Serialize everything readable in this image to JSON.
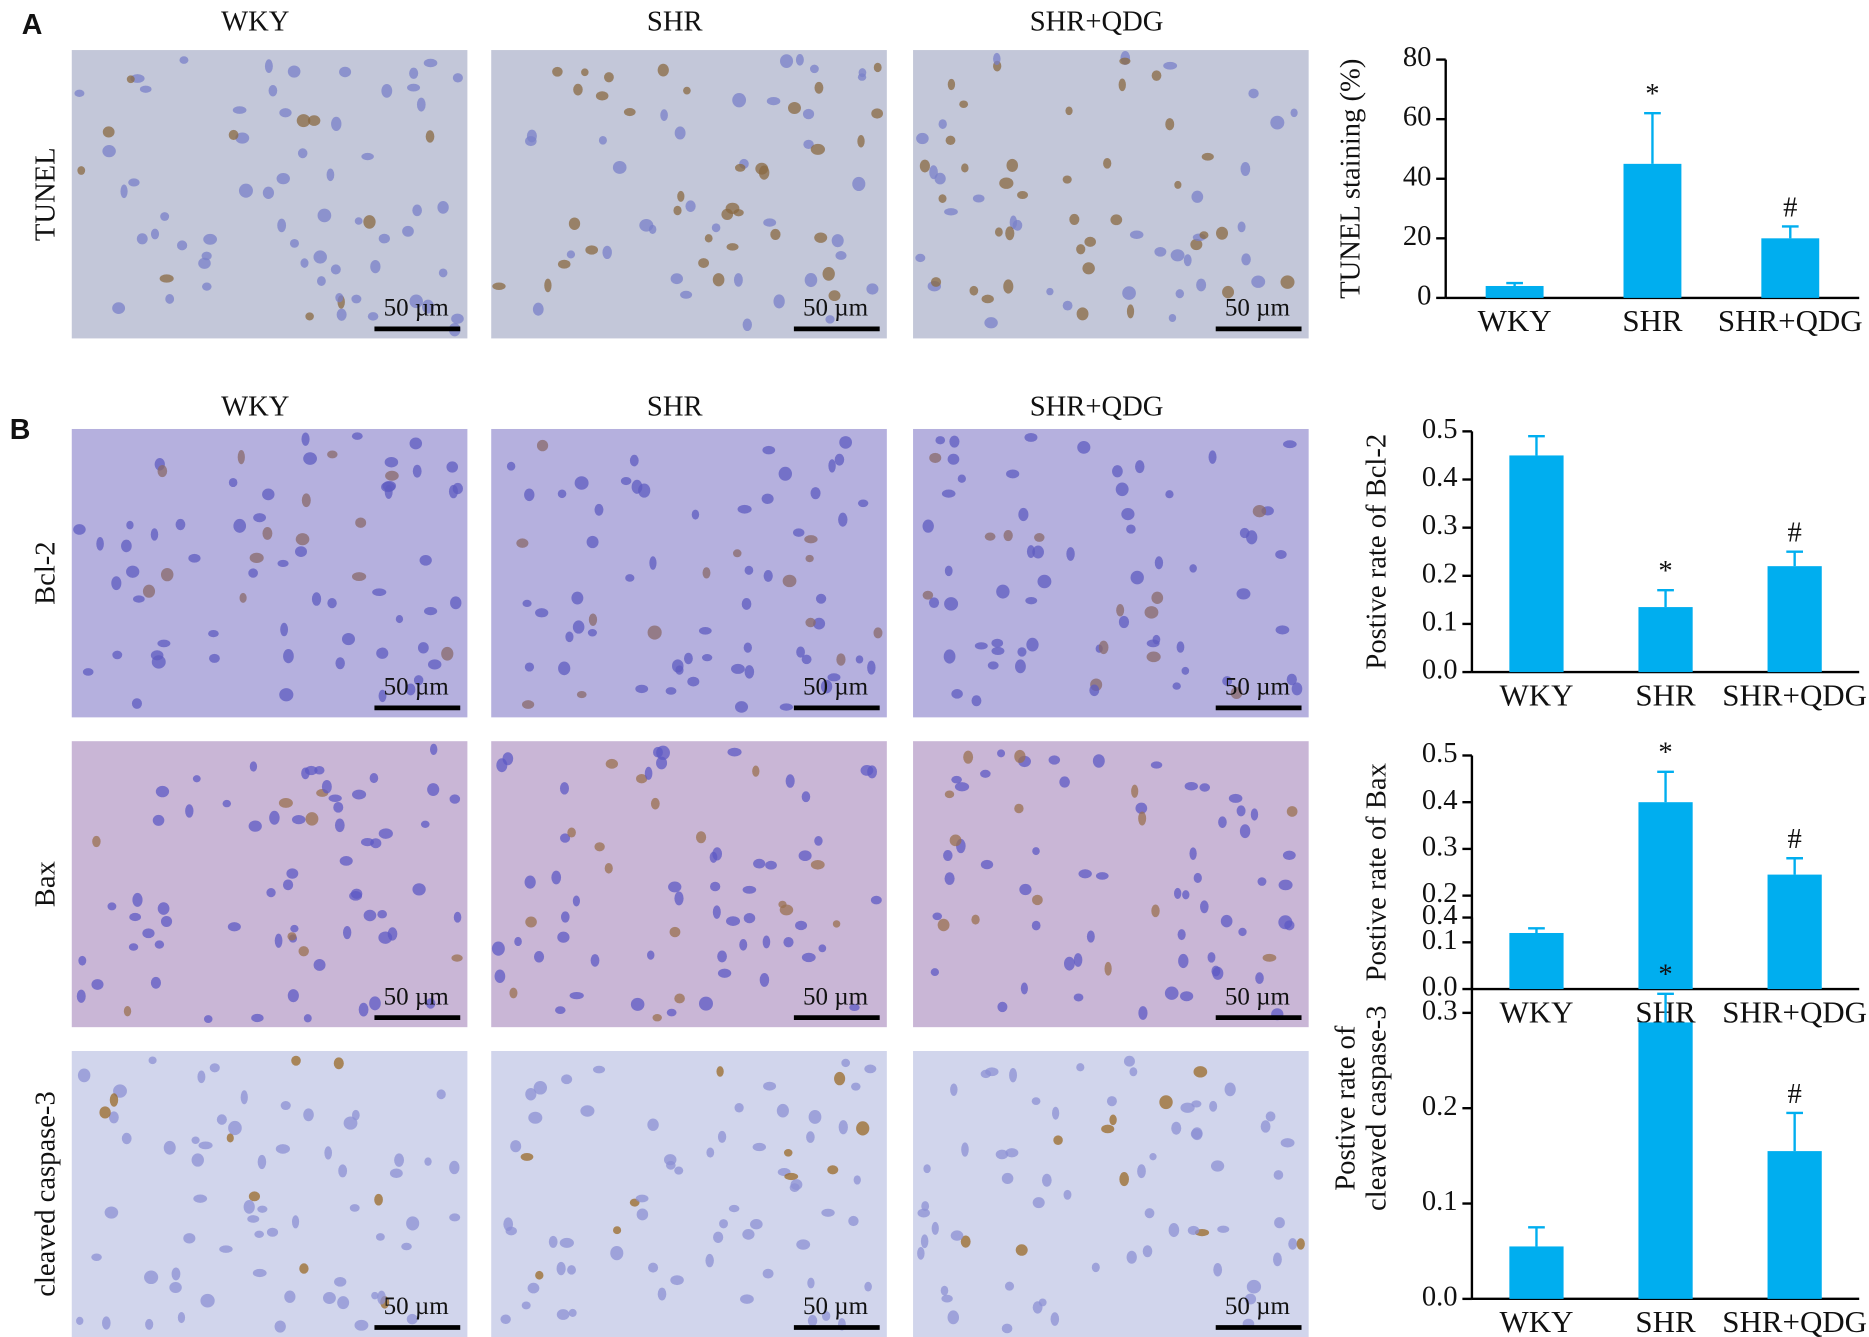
{
  "figure": {
    "panels": [
      "A",
      "B"
    ],
    "columns": [
      "WKY",
      "SHR",
      "SHR+QDG"
    ],
    "rows": [
      "TUNEL",
      "Bcl-2",
      "Bax",
      "cleaved caspase-3"
    ],
    "scale_bar": "50 µm"
  },
  "chart_data": [
    {
      "type": "bar",
      "ylabel": [
        "TUNEL staining (%)"
      ],
      "categories": [
        "WKY",
        "SHR",
        "SHR+QDG"
      ],
      "values": [
        4,
        45,
        20
      ],
      "errors": [
        1,
        17,
        4
      ],
      "color": "#00aeef",
      "ylim": [
        0,
        80
      ],
      "yticks": [
        0,
        20,
        40,
        60,
        80
      ],
      "annotations": [
        {
          "x": "SHR",
          "text": "*"
        },
        {
          "x": "SHR+QDG",
          "text": "#"
        }
      ]
    },
    {
      "type": "bar",
      "ylabel": [
        "Postive rate of Bcl-2"
      ],
      "categories": [
        "WKY",
        "SHR",
        "SHR+QDG"
      ],
      "values": [
        0.45,
        0.135,
        0.22
      ],
      "errors": [
        0.04,
        0.035,
        0.03
      ],
      "color": "#00aeef",
      "ylim": [
        0,
        0.5
      ],
      "yticks": [
        {
          "value": 0,
          "label": "0.0"
        },
        0.1,
        0.2,
        0.3,
        0.4,
        0.5
      ],
      "annotations": [
        {
          "x": "SHR",
          "text": "*"
        },
        {
          "x": "SHR+QDG",
          "text": "#"
        }
      ]
    },
    {
      "type": "bar",
      "ylabel": [
        "Postive rate of Bax"
      ],
      "categories": [
        "WKY",
        "SHR",
        "SHR+QDG"
      ],
      "values": [
        0.12,
        0.4,
        0.245
      ],
      "errors": [
        0.01,
        0.065,
        0.035
      ],
      "color": "#00aeef",
      "ylim": [
        0,
        0.5
      ],
      "yticks": [
        {
          "value": 0,
          "label": "0.0"
        },
        0.1,
        0.2,
        0.3,
        0.4,
        0.5
      ],
      "annotations": [
        {
          "x": "SHR",
          "text": "*"
        },
        {
          "x": "SHR+QDG",
          "text": "#"
        }
      ]
    },
    {
      "type": "bar",
      "ylabel": [
        "Postive rate of",
        "cleaved caspase-3"
      ],
      "categories": [
        "WKY",
        "SHR",
        "SHR+QDG"
      ],
      "values": [
        0.055,
        0.29,
        0.155
      ],
      "errors": [
        0.02,
        0.03,
        0.04
      ],
      "color": "#00aeef",
      "ylim": [
        0,
        0.4
      ],
      "yticks": [
        {
          "value": 0,
          "label": "0.0"
        },
        0.1,
        0.2,
        0.3,
        0.4
      ],
      "annotations": [
        {
          "x": "SHR",
          "text": "*"
        },
        {
          "x": "SHR+QDG",
          "text": "#"
        }
      ]
    }
  ]
}
